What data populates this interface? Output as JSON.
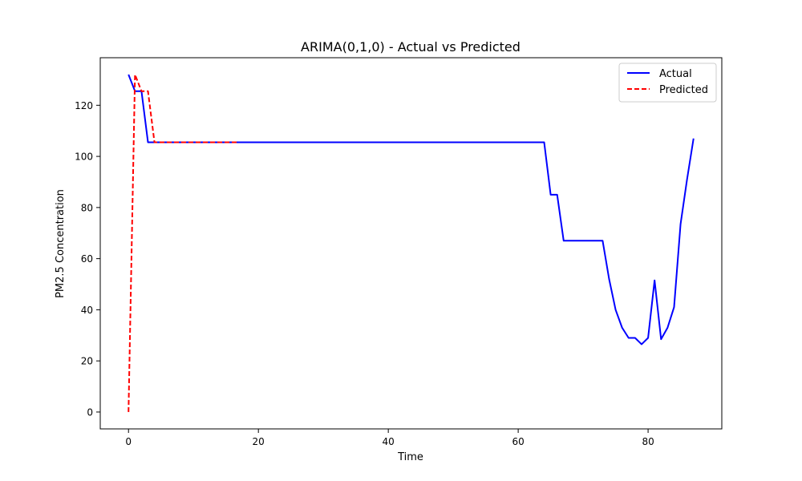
{
  "chart_data": {
    "type": "line",
    "title": "ARIMA(0,1,0) - Actual vs Predicted",
    "xlabel": "Time",
    "ylabel": "PM2.5 Concentration",
    "xlim": [
      -4.35,
      91.35
    ],
    "ylim": [
      -6.6,
      138.6
    ],
    "xticks": [
      0,
      20,
      40,
      60,
      80
    ],
    "yticks": [
      0,
      20,
      40,
      60,
      80,
      100,
      120
    ],
    "grid": false,
    "legend_position": "top-right",
    "series": [
      {
        "name": "Actual",
        "color": "#0000ff",
        "style": "solid",
        "x": [
          0,
          1,
          2,
          3,
          4,
          5,
          6,
          7,
          8,
          9,
          10,
          11,
          12,
          13,
          14,
          15,
          16,
          17,
          18,
          19,
          20,
          21,
          22,
          23,
          24,
          25,
          26,
          27,
          28,
          29,
          30,
          31,
          32,
          33,
          34,
          35,
          36,
          37,
          38,
          39,
          40,
          41,
          42,
          43,
          44,
          45,
          46,
          47,
          48,
          49,
          50,
          51,
          52,
          53,
          54,
          55,
          56,
          57,
          58,
          59,
          60,
          61,
          62,
          63,
          64,
          65,
          66,
          67,
          68,
          69,
          70,
          71,
          72,
          73,
          74,
          75,
          76,
          77,
          78,
          79,
          80,
          81,
          82,
          83,
          84,
          85,
          86,
          87
        ],
        "values": [
          132,
          125.5,
          125.5,
          105.5,
          105.5,
          105.5,
          105.5,
          105.5,
          105.5,
          105.5,
          105.5,
          105.5,
          105.5,
          105.5,
          105.5,
          105.5,
          105.5,
          105.5,
          105.5,
          105.5,
          105.5,
          105.5,
          105.5,
          105.5,
          105.5,
          105.5,
          105.5,
          105.5,
          105.5,
          105.5,
          105.5,
          105.5,
          105.5,
          105.5,
          105.5,
          105.5,
          105.5,
          105.5,
          105.5,
          105.5,
          105.5,
          105.5,
          105.5,
          105.5,
          105.5,
          105.5,
          105.5,
          105.5,
          105.5,
          105.5,
          105.5,
          105.5,
          105.5,
          105.5,
          105.5,
          105.5,
          105.5,
          105.5,
          105.5,
          105.5,
          105.5,
          105.5,
          105.5,
          105.5,
          105.5,
          85,
          85,
          67,
          67,
          67,
          67,
          67,
          67,
          67,
          52,
          40,
          33,
          29,
          29,
          26.5,
          29,
          51.5,
          28.5,
          33,
          41,
          73.5,
          91,
          107
        ]
      },
      {
        "name": "Predicted",
        "color": "#ff0000",
        "style": "dashed",
        "x": [
          0,
          1,
          2,
          3,
          4,
          5,
          6,
          7,
          8,
          9,
          10,
          11,
          12,
          13,
          14,
          15,
          16,
          17
        ],
        "values": [
          0,
          132,
          125.5,
          125.5,
          105.5,
          105.5,
          105.5,
          105.5,
          105.5,
          105.5,
          105.5,
          105.5,
          105.5,
          105.5,
          105.5,
          105.5,
          105.5,
          105.5
        ]
      }
    ]
  }
}
